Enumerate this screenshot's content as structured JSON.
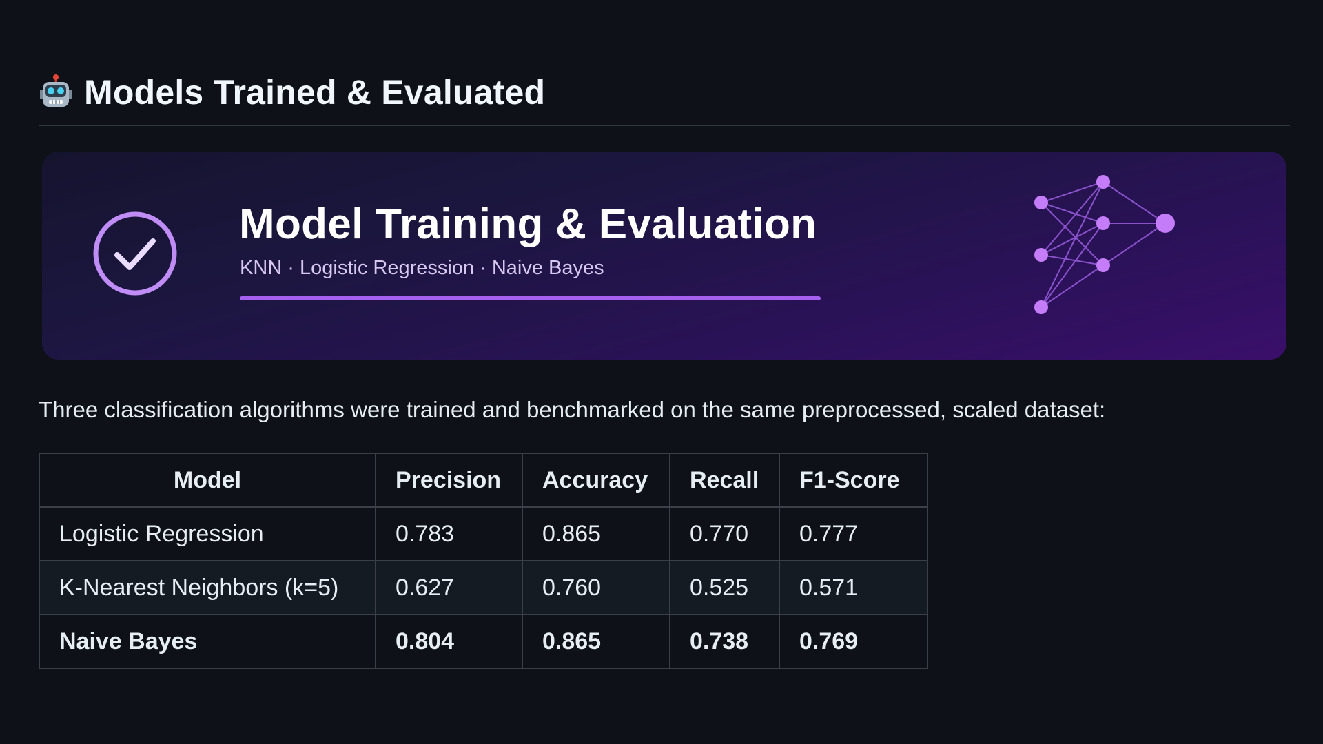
{
  "section": {
    "icon": "robot-icon",
    "title": "Models Trained & Evaluated"
  },
  "banner": {
    "title": "Model Training & Evaluation",
    "subtitle": "KNN · Logistic Regression · Naive Bayes",
    "icons": [
      "check-circle-icon",
      "neural-network-icon"
    ],
    "colors": {
      "accent": "#a560f0",
      "gradient_start": "#15142e",
      "gradient_end": "#3a0f6b"
    }
  },
  "intro": "Three classification algorithms were trained and benchmarked on the same preprocessed, scaled dataset:",
  "table": {
    "headers": [
      "Model",
      "Precision",
      "Accuracy",
      "Recall",
      "F1-Score"
    ],
    "rows": [
      [
        "Logistic Regression",
        "0.783",
        "0.865",
        "0.770",
        "0.777"
      ],
      [
        "K-Nearest Neighbors (k=5)",
        "0.627",
        "0.760",
        "0.525",
        "0.571"
      ],
      [
        "Naive Bayes",
        "0.804",
        "0.865",
        "0.738",
        "0.769"
      ]
    ],
    "bold_row": "Naive Bayes"
  },
  "colors": {
    "background": "#0e1117",
    "text": "#e6edf3",
    "border": "#3b4048"
  }
}
